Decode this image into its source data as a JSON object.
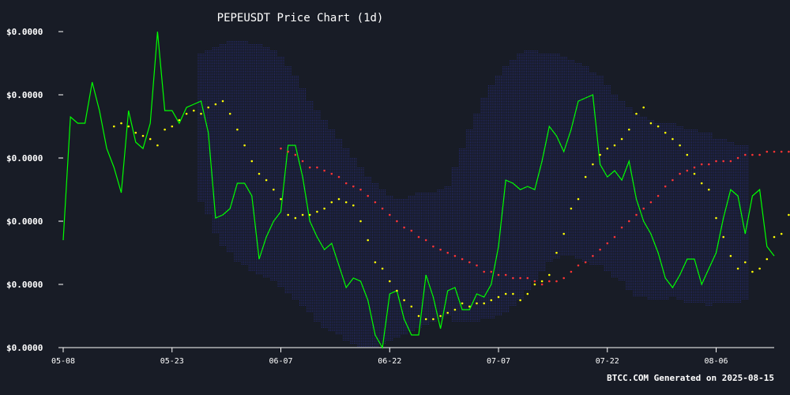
{
  "chart_data": {
    "type": "line",
    "title": "PEPEUSDT Price Chart (1d)",
    "footer": "BTCC.COM Generated on 2025-08-15",
    "xlabel": "",
    "ylabel": "",
    "grid": false,
    "ylim": [
      0,
      100
    ],
    "x_ticks": [
      "05-08",
      "05-23",
      "06-07",
      "06-22",
      "07-07",
      "07-22",
      "08-06"
    ],
    "x_tick_positions": [
      0,
      15,
      30,
      45,
      60,
      75,
      90
    ],
    "y_tick_labels": [
      "$0.0000",
      "$0.0000",
      "$0.0000",
      "$0.0000",
      "$0.0000",
      "$0.0000"
    ],
    "y_tick_values": [
      0,
      20,
      40,
      60,
      80,
      100
    ],
    "colors": {
      "background": "#181c26",
      "price": "#00ff00",
      "ma_short": "#ffff00",
      "ma_long": "#ff3333",
      "band": "#2a2f8a",
      "axis": "#ffffff"
    },
    "series": [
      {
        "style": "line",
        "values": [
          34,
          73,
          71,
          71,
          84,
          75,
          63,
          57,
          49,
          75,
          65,
          63,
          71,
          100,
          75,
          75,
          71,
          76,
          77,
          78,
          68,
          41,
          42,
          44,
          52,
          52,
          48,
          28,
          35,
          40,
          43,
          64,
          64,
          54,
          40,
          35,
          31,
          33,
          26,
          19,
          22,
          21,
          15,
          4,
          0,
          17,
          18,
          9,
          4,
          4,
          23,
          16,
          6,
          18,
          19,
          12,
          12,
          17,
          16,
          20,
          32,
          53,
          52,
          50,
          51,
          50,
          59,
          70,
          67,
          62,
          69,
          78,
          79,
          80,
          58,
          54,
          56,
          53,
          59,
          47,
          40,
          36,
          30,
          22,
          19,
          23,
          28,
          28,
          20,
          25,
          30,
          41,
          50,
          48,
          36,
          48,
          50,
          32,
          29
        ]
      },
      {
        "style": "dots-small",
        "start": 7,
        "values": [
          70,
          71,
          70,
          68,
          67,
          66,
          64,
          69,
          70,
          72,
          74,
          75,
          74,
          76,
          77,
          78,
          74,
          69,
          64,
          59,
          55,
          53,
          50,
          47,
          42,
          41,
          42,
          42,
          43,
          44,
          46,
          47,
          46,
          45,
          40,
          34,
          27,
          25,
          21,
          18,
          15,
          13,
          10,
          9,
          9,
          10,
          11,
          12,
          14,
          13,
          14,
          14,
          15,
          16,
          17,
          17,
          15,
          17,
          20,
          21,
          23,
          30,
          36,
          44,
          47,
          54,
          58,
          61,
          63,
          64,
          66,
          69,
          74,
          76,
          71,
          70,
          68,
          66,
          64,
          61,
          55,
          52,
          50,
          41,
          35,
          29,
          25,
          27,
          24,
          25,
          28,
          35,
          36,
          42,
          46,
          45,
          44,
          43
        ]
      },
      {
        "style": "dots-large",
        "start": 30,
        "values": [
          63,
          62,
          61,
          59,
          57,
          57,
          56,
          55,
          54,
          52,
          51,
          50,
          48,
          46,
          44,
          42,
          40,
          38,
          37,
          35,
          34,
          32,
          31,
          30,
          29,
          28,
          27,
          26,
          24,
          24,
          23,
          23,
          22,
          22,
          22,
          21,
          20,
          21,
          21,
          22,
          24,
          26,
          27,
          29,
          31,
          33,
          35,
          38,
          40,
          42,
          44,
          46,
          48,
          51,
          53,
          55,
          56,
          57,
          58,
          58,
          59,
          59,
          59,
          60,
          61,
          61,
          61,
          62,
          62,
          62,
          62,
          61,
          61,
          61
        ]
      }
    ],
    "band": {
      "start": 19,
      "upper": [
        93,
        94,
        95,
        96,
        97,
        97,
        97,
        96,
        96,
        95,
        94,
        92,
        89,
        86,
        82,
        78,
        75,
        72,
        69,
        66,
        63,
        60,
        57,
        54,
        52,
        50,
        48,
        47,
        47,
        48,
        49,
        49,
        49,
        50,
        51,
        57,
        63,
        69,
        74,
        79,
        83,
        86,
        89,
        91,
        93,
        94,
        94,
        93,
        93,
        93,
        92,
        91,
        90,
        89,
        87,
        86,
        83,
        80,
        78,
        76,
        74,
        73,
        72,
        71,
        71,
        71,
        70,
        69,
        69,
        68,
        68,
        66,
        66,
        65,
        64,
        64
      ],
      "lower": [
        46,
        42,
        36,
        32,
        30,
        27,
        26,
        24,
        23,
        22,
        21,
        19,
        17,
        15,
        13,
        11,
        8,
        6,
        5,
        4,
        2,
        1,
        0,
        0,
        0,
        1,
        2,
        3,
        4,
        5,
        6,
        7,
        8,
        9,
        10,
        8,
        8,
        8,
        8,
        9,
        9,
        10,
        11,
        13,
        15,
        18,
        21,
        24,
        27,
        28,
        29,
        29,
        28,
        27,
        26,
        26,
        24,
        22,
        21,
        18,
        16,
        16,
        15,
        15,
        15,
        16,
        15,
        14,
        14,
        14,
        13,
        14,
        14,
        14,
        14,
        15
      ]
    }
  }
}
